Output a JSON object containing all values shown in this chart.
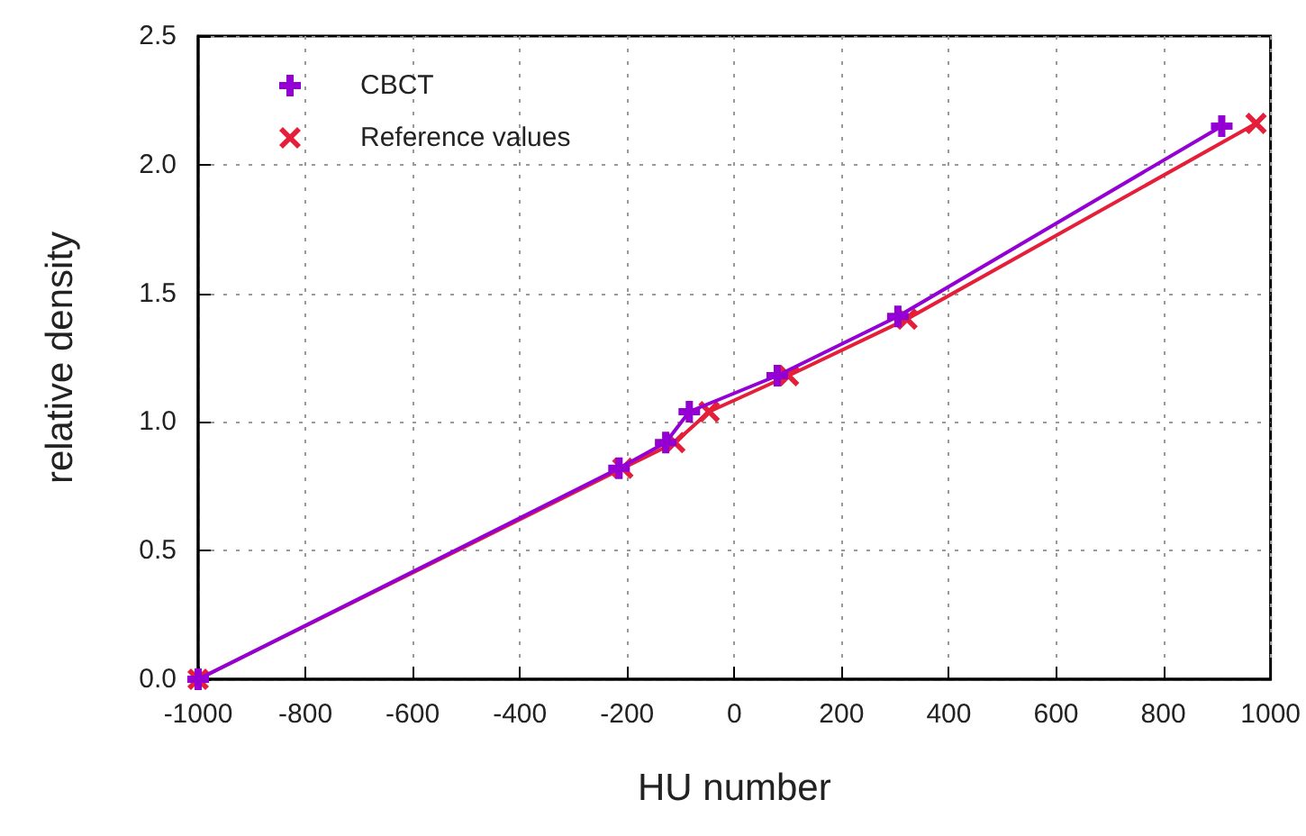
{
  "chart_data": {
    "type": "line",
    "xlabel": "HU number",
    "ylabel": "relative density",
    "xlim": [
      -1000,
      1000
    ],
    "xticks": [
      -1000,
      -800,
      -600,
      -400,
      -200,
      0,
      200,
      400,
      600,
      800,
      1000
    ],
    "ylim": [
      0,
      2.5
    ],
    "yticks": [
      {
        "value": 0,
        "label": "0.0"
      },
      {
        "value": 0.5,
        "label": "0.5"
      },
      {
        "value": 1,
        "label": "1.0"
      },
      {
        "value": 1.5,
        "label": "1.5"
      },
      {
        "value": 2,
        "label": "2.0"
      },
      {
        "value": 2.5,
        "label": "2.5"
      }
    ],
    "grid": true,
    "legend": "top left",
    "line_style": "solid",
    "series": [
      {
        "name": "CBCT",
        "color": "#9400d3",
        "marker": "plus",
        "x": [
          -1000,
          -215,
          -128,
          -84,
          80,
          305,
          909
        ],
        "values": [
          0,
          0.82,
          0.92,
          1.04,
          1.18,
          1.41,
          2.15
        ]
      },
      {
        "name": "Reference values",
        "color": "#e51e3a",
        "marker": "cross",
        "x": [
          -1000,
          -208,
          -111,
          -47,
          101,
          322,
          973
        ],
        "values": [
          0,
          0.82,
          0.92,
          1.04,
          1.18,
          1.4,
          2.16
        ]
      }
    ]
  }
}
